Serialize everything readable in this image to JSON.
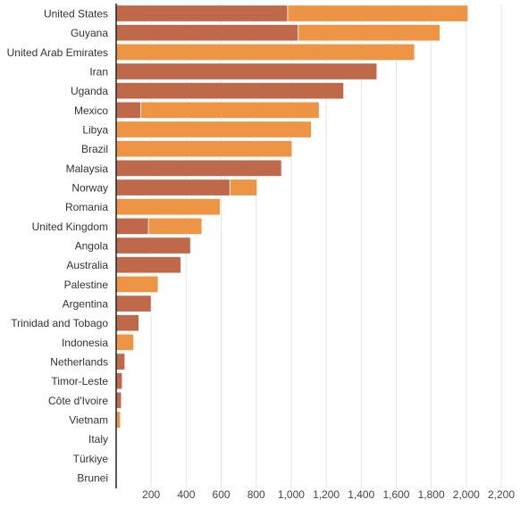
{
  "chart_data": {
    "type": "bar",
    "orientation": "horizontal",
    "stacked": true,
    "title": "",
    "xlabel": "",
    "ylabel": "",
    "xlim": [
      0,
      2200
    ],
    "xticks": [
      200,
      400,
      600,
      800,
      1000,
      1200,
      1400,
      1600,
      1800,
      2000,
      2200
    ],
    "xtick_labels": [
      "200",
      "400",
      "600",
      "800",
      "1,000",
      "1,200",
      "1,400",
      "1,600",
      "1,800",
      "2,000",
      "2,200"
    ],
    "grid": "vertical",
    "legend": "none",
    "categories": [
      "United States",
      "Guyana",
      "United Arab Emirates",
      "Iran",
      "Uganda",
      "Mexico",
      "Libya",
      "Brazil",
      "Malaysia",
      "Norway",
      "Romania",
      "United Kingdom",
      "Angola",
      "Australia",
      "Palestine",
      "Argentina",
      "Trinidad and Tobago",
      "Indonesia",
      "Netherlands",
      "Timor-Leste",
      "Côte d'Ivoire",
      "Vietnam",
      "Italy",
      "Türkiye",
      "Brunei"
    ],
    "series": [
      {
        "color": "#c0694a",
        "values": [
          980,
          1040,
          0,
          1490,
          1300,
          140,
          0,
          0,
          945,
          650,
          0,
          185,
          425,
          370,
          0,
          200,
          130,
          0,
          50,
          35,
          30,
          0,
          0,
          0,
          0
        ]
      },
      {
        "color": "#ed9545",
        "values": [
          1030,
          810,
          1705,
          0,
          0,
          1020,
          1115,
          1005,
          0,
          155,
          595,
          305,
          0,
          0,
          240,
          0,
          0,
          100,
          0,
          0,
          0,
          25,
          0,
          0,
          0
        ]
      }
    ]
  }
}
